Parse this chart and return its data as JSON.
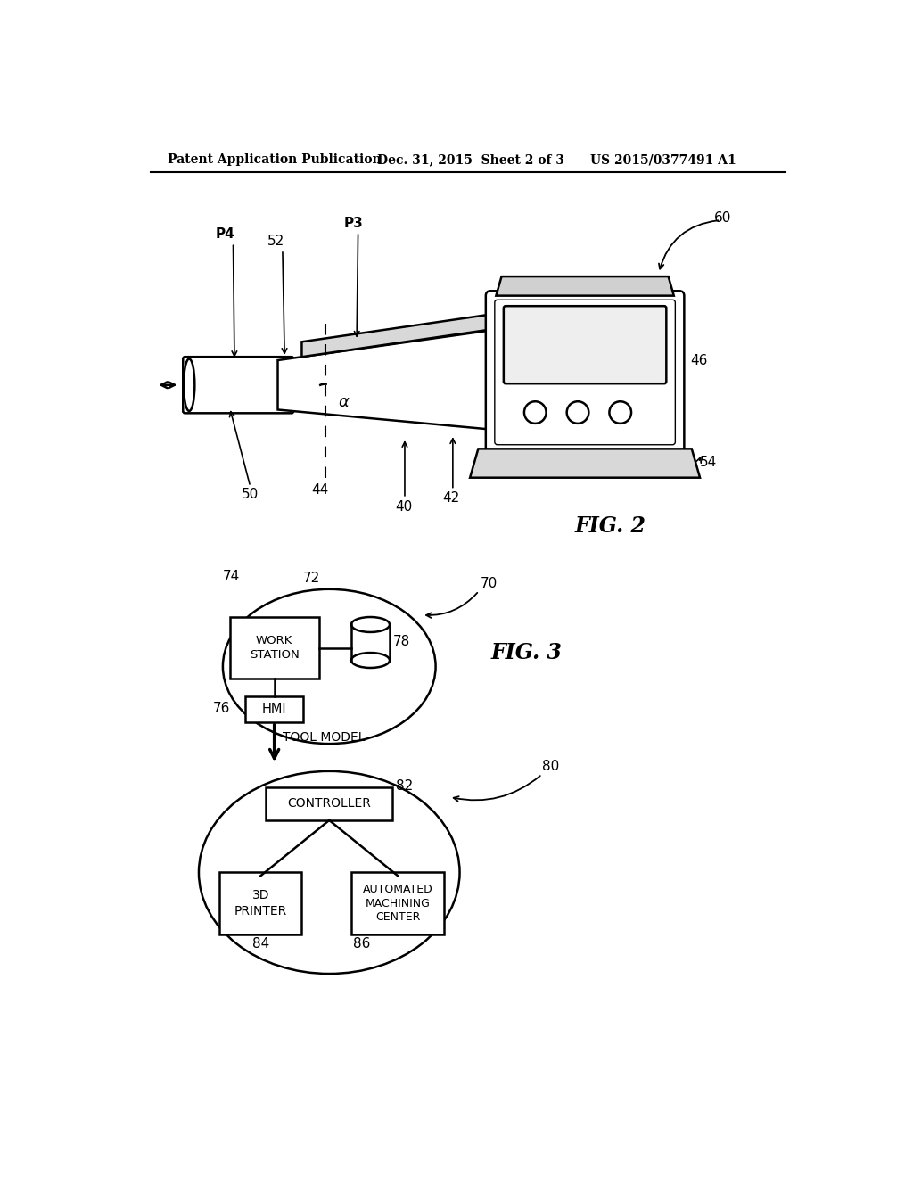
{
  "bg_color": "#ffffff",
  "header_left": "Patent Application Publication",
  "header_mid": "Dec. 31, 2015  Sheet 2 of 3",
  "header_right": "US 2015/0377491 A1",
  "fig2_label": "FIG. 2",
  "fig3_label": "FIG. 3",
  "line_color": "#000000"
}
